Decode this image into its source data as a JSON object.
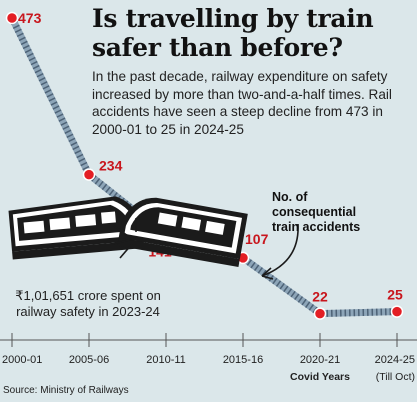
{
  "headline": {
    "title": "Is travelling by train safer than before?",
    "subtitle": "In the past decade, railway expenditure on safety increased by more than two-and-a-half times. Rail accidents have seen a steep decline from 473 in 2000-01 to 25 in 2024-25"
  },
  "annotation": "₹1,01,651 crore spent on railway safety in 2023-24",
  "source": "Source: Ministry of Railways",
  "colors": {
    "background": "#dbe7ea",
    "line": "#8da5b8",
    "marker": "#e31e24",
    "label": "#c8161d"
  },
  "chart_data": {
    "type": "line",
    "x": [
      "2000-01",
      "2005-06",
      "2010-11",
      "2015-16",
      "2020-21",
      "2024-25"
    ],
    "x_sublabels": [
      "",
      "",
      "",
      "",
      "Covid Years",
      "(Till Oct)"
    ],
    "series": [
      {
        "name": "No. of consequential train accidents",
        "values": [
          473,
          234,
          141,
          107,
          22,
          25
        ]
      }
    ],
    "data_labels": [
      "473",
      "234",
      "141",
      "107",
      "22",
      "25"
    ],
    "ylim": [
      0,
      473
    ],
    "grid": false,
    "legend": "annotation-arrow",
    "illustration": "train-crash-icon"
  }
}
